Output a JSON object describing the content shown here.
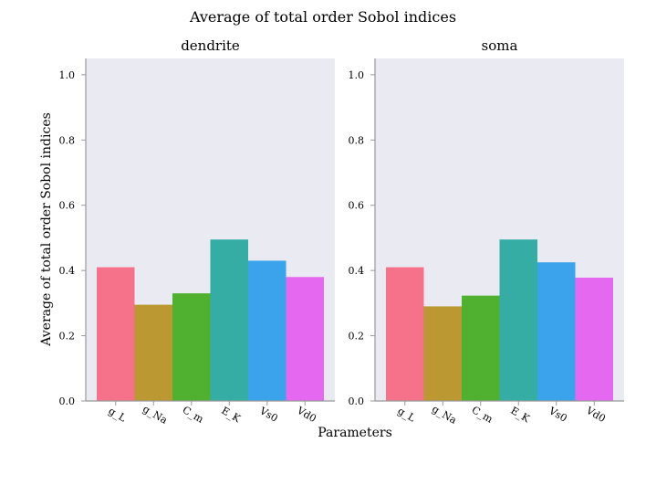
{
  "figure": {
    "title": "Average of total order Sobol indices",
    "xlabel": "Parameters",
    "ylabel": "Average of total order Sobol indices"
  },
  "chart_data": [
    {
      "type": "bar",
      "title": "dendrite",
      "categories": [
        "g_L",
        "g_Na",
        "C_m",
        "E_K",
        "Vs0",
        "Vd0"
      ],
      "values": [
        0.41,
        0.295,
        0.33,
        0.495,
        0.43,
        0.38
      ],
      "ylim": [
        0,
        1.05
      ],
      "yticks": [
        "0.0",
        "0.2",
        "0.4",
        "0.6",
        "0.8",
        "1.0"
      ],
      "grid": false,
      "colors": [
        "#f6718a",
        "#bb9832",
        "#50b131",
        "#36ada4",
        "#3ba3ec",
        "#e568f0"
      ]
    },
    {
      "type": "bar",
      "title": "soma",
      "categories": [
        "g_L",
        "g_Na",
        "C_m",
        "E_K",
        "Vs0",
        "Vd0"
      ],
      "values": [
        0.41,
        0.29,
        0.323,
        0.495,
        0.425,
        0.378
      ],
      "ylim": [
        0,
        1.05
      ],
      "yticks": [
        "0.0",
        "0.2",
        "0.4",
        "0.6",
        "0.8",
        "1.0"
      ],
      "grid": false,
      "colors": [
        "#f6718a",
        "#bb9832",
        "#50b131",
        "#36ada4",
        "#3ba3ec",
        "#e568f0"
      ]
    }
  ],
  "style": {
    "plot_background": "#eaeaf2",
    "axis_color": "#999999"
  }
}
